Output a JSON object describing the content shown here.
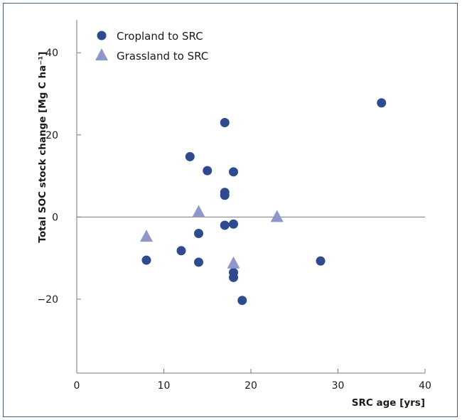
{
  "chart_data": {
    "type": "scatter",
    "title": "",
    "xlabel": "SRC age [yrs]",
    "ylabel": "Total SOC stock change [Mg C ha⁻¹]",
    "xlim": [
      0,
      40
    ],
    "ylim": [
      -38,
      48
    ],
    "xticks": [
      0,
      10,
      20,
      30,
      40
    ],
    "yticks": [
      -20,
      0,
      20,
      40
    ],
    "xtick_labels": [
      "0",
      "10",
      "20",
      "30",
      "40"
    ],
    "ytick_labels": [
      "−20",
      "0",
      "20",
      "40"
    ],
    "zero_line": true,
    "grid": false,
    "legend_position": "top-left",
    "series": [
      {
        "name": "Cropland to SRC",
        "marker": "circle",
        "color": "#2e4b8f",
        "points": [
          [
            8,
            -10.5
          ],
          [
            12,
            -8.2
          ],
          [
            13,
            14.7
          ],
          [
            14,
            -4
          ],
          [
            14,
            -11
          ],
          [
            15,
            11.3
          ],
          [
            17,
            23
          ],
          [
            17,
            6
          ],
          [
            17,
            5.3
          ],
          [
            17,
            -2
          ],
          [
            18,
            11
          ],
          [
            18,
            -1.7
          ],
          [
            18,
            -13.5
          ],
          [
            18,
            -14.7
          ],
          [
            19,
            -20.3
          ],
          [
            28,
            -10.7
          ],
          [
            35,
            27.8
          ]
        ]
      },
      {
        "name": "Grassland to SRC",
        "marker": "triangle",
        "color": "#8f97c9",
        "points": [
          [
            8,
            -4.8
          ],
          [
            14,
            1.2
          ],
          [
            18,
            -11.3
          ],
          [
            23,
            0
          ]
        ]
      }
    ]
  }
}
